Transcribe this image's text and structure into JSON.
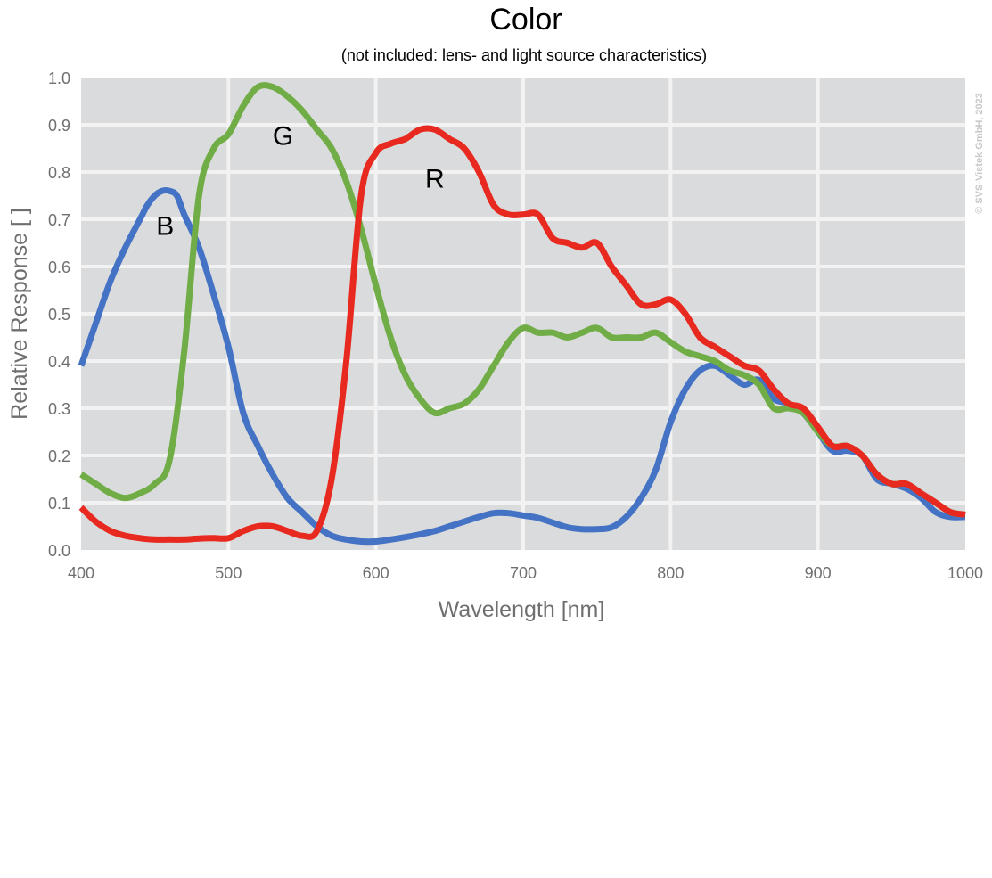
{
  "chart_data": {
    "type": "line",
    "title": "Color",
    "subtitle": "(not included: lens- and light source characteristics)",
    "xlabel": "Wavelength [nm]",
    "ylabel": "Relative Response [ ]",
    "xlim": [
      400,
      1000
    ],
    "ylim": [
      0,
      1.0
    ],
    "x_ticks": [
      "400",
      "500",
      "600",
      "700",
      "800",
      "900",
      "1000"
    ],
    "y_ticks": [
      "0.0",
      "0.1",
      "0.2",
      "0.3",
      "0.4",
      "0.5",
      "0.6",
      "0.7",
      "0.8",
      "0.9",
      "1.0"
    ],
    "grid": true,
    "background_color": "#dadbdc",
    "grid_color": "#f2f2f2",
    "copyright": "© SVS-Vistek GmbH, 2023",
    "series": [
      {
        "name": "B",
        "color": "#4472c4",
        "label_at": [
          457,
          0.69
        ],
        "x": [
          400,
          410,
          420,
          430,
          440,
          445,
          450,
          455,
          460,
          465,
          470,
          480,
          490,
          500,
          510,
          520,
          530,
          540,
          550,
          560,
          570,
          580,
          590,
          600,
          610,
          620,
          630,
          640,
          650,
          660,
          670,
          680,
          690,
          700,
          710,
          720,
          730,
          740,
          750,
          760,
          770,
          780,
          790,
          800,
          810,
          820,
          830,
          840,
          850,
          860,
          870,
          880,
          890,
          900,
          910,
          920,
          930,
          940,
          950,
          960,
          970,
          980,
          990,
          1000
        ],
        "y": [
          0.39,
          0.48,
          0.57,
          0.64,
          0.7,
          0.73,
          0.75,
          0.76,
          0.76,
          0.75,
          0.71,
          0.64,
          0.54,
          0.43,
          0.29,
          0.22,
          0.16,
          0.11,
          0.08,
          0.05,
          0.03,
          0.022,
          0.018,
          0.018,
          0.022,
          0.027,
          0.033,
          0.04,
          0.05,
          0.06,
          0.07,
          0.078,
          0.078,
          0.073,
          0.068,
          0.058,
          0.048,
          0.044,
          0.044,
          0.048,
          0.07,
          0.11,
          0.17,
          0.27,
          0.34,
          0.38,
          0.39,
          0.37,
          0.35,
          0.36,
          0.32,
          0.31,
          0.29,
          0.25,
          0.21,
          0.21,
          0.2,
          0.15,
          0.14,
          0.13,
          0.11,
          0.08,
          0.07,
          0.07
        ]
      },
      {
        "name": "G",
        "color": "#70ad47",
        "label_at": [
          537,
          0.88
        ],
        "x": [
          400,
          410,
          420,
          430,
          440,
          450,
          460,
          470,
          480,
          490,
          500,
          510,
          520,
          530,
          540,
          550,
          560,
          570,
          580,
          590,
          600,
          610,
          620,
          630,
          640,
          650,
          660,
          670,
          680,
          690,
          700,
          710,
          720,
          730,
          740,
          750,
          760,
          770,
          780,
          790,
          800,
          810,
          820,
          830,
          840,
          850,
          860,
          870,
          880,
          890,
          900,
          910,
          920,
          930,
          940,
          950,
          960,
          970,
          980,
          990,
          1000
        ],
        "y": [
          0.16,
          0.14,
          0.12,
          0.11,
          0.12,
          0.14,
          0.19,
          0.42,
          0.75,
          0.85,
          0.88,
          0.94,
          0.98,
          0.98,
          0.96,
          0.93,
          0.89,
          0.85,
          0.78,
          0.68,
          0.56,
          0.45,
          0.37,
          0.32,
          0.29,
          0.3,
          0.31,
          0.34,
          0.39,
          0.44,
          0.47,
          0.46,
          0.46,
          0.45,
          0.46,
          0.47,
          0.45,
          0.45,
          0.45,
          0.46,
          0.44,
          0.42,
          0.41,
          0.4,
          0.38,
          0.37,
          0.35,
          0.3,
          0.3,
          0.29,
          0.25,
          0.22,
          0.22,
          0.2,
          0.16,
          0.14,
          0.14,
          0.12,
          0.1,
          0.08,
          0.075
        ]
      },
      {
        "name": "R",
        "color": "#e8291f",
        "label_at": [
          640,
          0.79
        ],
        "x": [
          400,
          410,
          420,
          430,
          440,
          450,
          460,
          470,
          480,
          490,
          500,
          510,
          520,
          530,
          540,
          550,
          560,
          570,
          580,
          590,
          600,
          610,
          620,
          630,
          640,
          650,
          660,
          670,
          680,
          690,
          700,
          710,
          720,
          730,
          740,
          750,
          760,
          770,
          780,
          790,
          800,
          810,
          820,
          830,
          840,
          850,
          860,
          870,
          880,
          890,
          900,
          910,
          920,
          930,
          940,
          950,
          960,
          970,
          980,
          990,
          1000
        ],
        "y": [
          0.09,
          0.06,
          0.04,
          0.03,
          0.025,
          0.022,
          0.022,
          0.022,
          0.024,
          0.025,
          0.025,
          0.04,
          0.05,
          0.05,
          0.04,
          0.03,
          0.04,
          0.15,
          0.4,
          0.75,
          0.84,
          0.86,
          0.87,
          0.89,
          0.89,
          0.87,
          0.85,
          0.8,
          0.73,
          0.71,
          0.71,
          0.71,
          0.66,
          0.65,
          0.64,
          0.65,
          0.6,
          0.56,
          0.52,
          0.52,
          0.53,
          0.5,
          0.45,
          0.43,
          0.41,
          0.39,
          0.38,
          0.34,
          0.31,
          0.3,
          0.26,
          0.22,
          0.22,
          0.2,
          0.16,
          0.14,
          0.14,
          0.12,
          0.1,
          0.08,
          0.075
        ]
      }
    ]
  }
}
